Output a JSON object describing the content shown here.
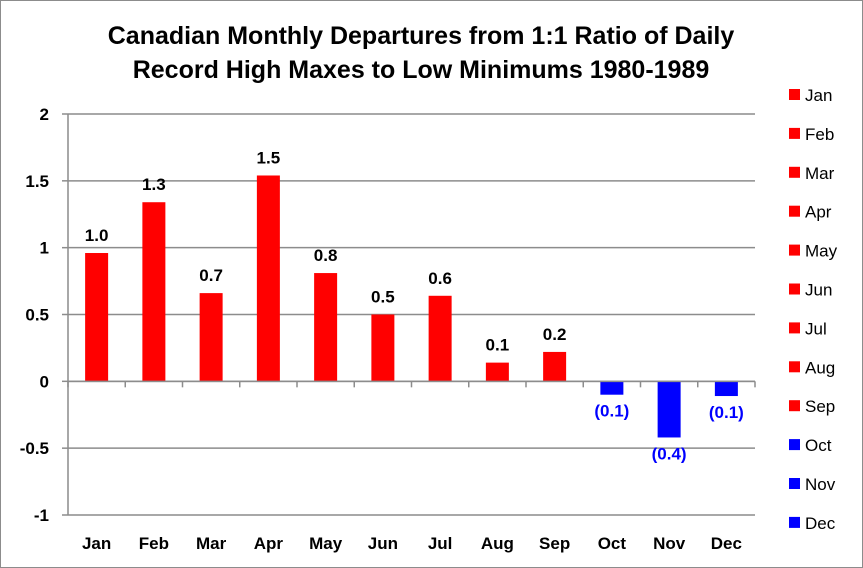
{
  "chart_data": {
    "type": "bar",
    "title_line1": "Canadian Monthly Departures from 1:1 Ratio of Daily",
    "title_line2": "Record High Maxes to Low Minimums 1980-1989",
    "categories": [
      "Jan",
      "Feb",
      "Mar",
      "Apr",
      "May",
      "Jun",
      "Jul",
      "Aug",
      "Sep",
      "Oct",
      "Nov",
      "Dec"
    ],
    "values": [
      0.96,
      1.34,
      0.66,
      1.54,
      0.81,
      0.5,
      0.64,
      0.14,
      0.22,
      -0.1,
      -0.42,
      -0.11
    ],
    "data_labels": [
      "1.0",
      "1.3",
      "0.7",
      "1.5",
      "0.8",
      "0.5",
      "0.6",
      "0.1",
      "0.2",
      "(0.1)",
      "(0.4)",
      "(0.1)"
    ],
    "colors": [
      "#ff0000",
      "#ff0000",
      "#ff0000",
      "#ff0000",
      "#ff0000",
      "#ff0000",
      "#ff0000",
      "#ff0000",
      "#ff0000",
      "#0000ff",
      "#0000ff",
      "#0000ff"
    ],
    "positive_color": "#ff0000",
    "negative_color": "#0000ff",
    "yticks": [
      "2",
      "1.5",
      "1",
      "0.5",
      "0",
      "-0.5",
      "-1"
    ],
    "ytick_values": [
      2,
      1.5,
      1,
      0.5,
      0,
      -0.5,
      -1
    ],
    "ylim": [
      -1,
      2
    ],
    "xlabel": "",
    "ylabel": "",
    "grid": true,
    "legend_position": "right",
    "legend": [
      "Jan",
      "Feb",
      "Mar",
      "Apr",
      "May",
      "Jun",
      "Jul",
      "Aug",
      "Sep",
      "Oct",
      "Nov",
      "Dec"
    ]
  }
}
